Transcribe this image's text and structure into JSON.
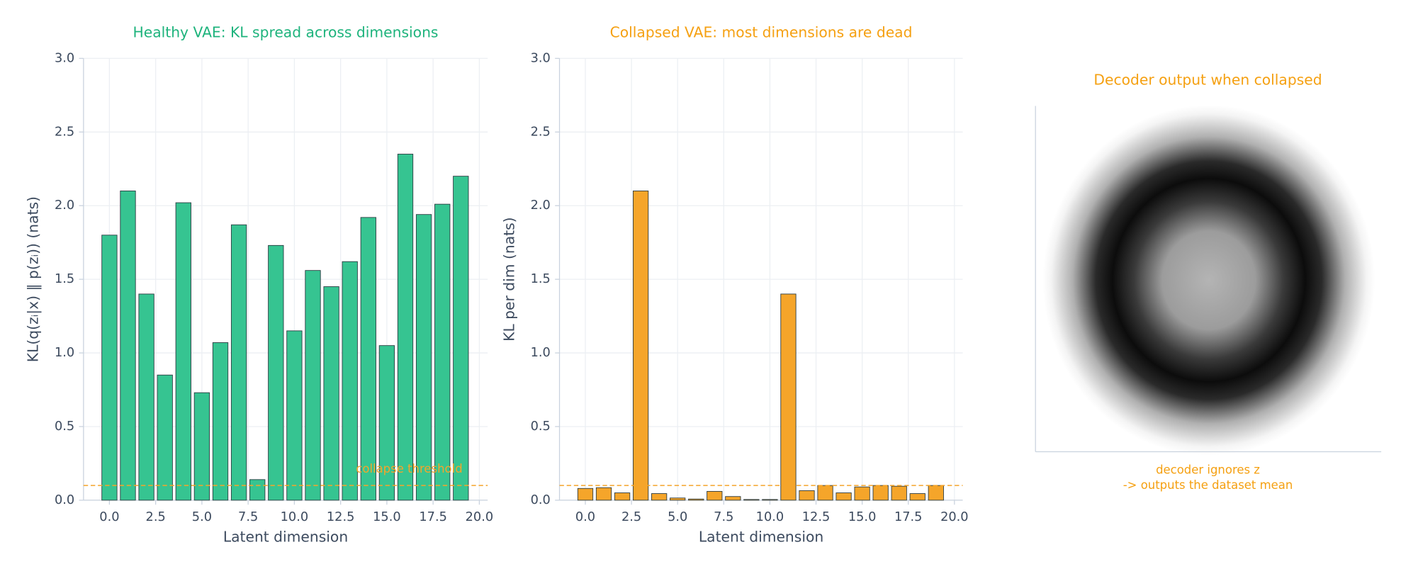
{
  "chart_data": [
    {
      "type": "bar",
      "title": "Healthy VAE: KL spread across dimensions",
      "title_color": "#1db37c",
      "x_label": "Latent dimension",
      "y_label": "KL(q(zᵢ|x) ‖ p(zᵢ)) (nats)",
      "x": [
        0,
        1,
        2,
        3,
        4,
        5,
        6,
        7,
        8,
        9,
        10,
        11,
        12,
        13,
        14,
        15,
        16,
        17,
        18,
        19
      ],
      "values": [
        1.8,
        2.1,
        1.4,
        0.85,
        2.02,
        0.73,
        1.07,
        1.87,
        0.14,
        1.73,
        1.15,
        1.56,
        1.45,
        1.62,
        1.92,
        1.05,
        2.35,
        1.94,
        2.01,
        2.2
      ],
      "color": "#36c491",
      "xlim": [
        -1.4,
        20.45
      ],
      "ylim": [
        0,
        3
      ],
      "xticks": [
        {
          "value": 0,
          "label": "0.0"
        },
        2.5,
        {
          "value": 5,
          "label": "5.0"
        },
        7.5,
        {
          "value": 10,
          "label": "10.0"
        },
        12.5,
        {
          "value": 15,
          "label": "15.0"
        },
        17.5,
        {
          "value": 20,
          "label": "20.0"
        }
      ],
      "yticks": [
        {
          "value": 0,
          "label": "0.0"
        },
        0.5,
        {
          "value": 1,
          "label": "1.0"
        },
        1.5,
        {
          "value": 2,
          "label": "2.0"
        },
        2.5,
        {
          "value": 3,
          "label": "3.0"
        }
      ],
      "grid": true,
      "threshold": 0.1,
      "threshold_label": "collapse threshold",
      "threshold_color": "#f5a52a"
    },
    {
      "type": "bar",
      "title": "Collapsed VAE: most dimensions are dead",
      "title_color": "#f5a011",
      "x_label": "Latent dimension",
      "y_label": "KL per dim (nats)",
      "x": [
        0,
        1,
        2,
        3,
        4,
        5,
        6,
        7,
        8,
        9,
        10,
        11,
        12,
        13,
        14,
        15,
        16,
        17,
        18,
        19
      ],
      "values": [
        0.08,
        0.085,
        0.05,
        2.1,
        0.045,
        0.015,
        0.008,
        0.06,
        0.025,
        0.005,
        0.005,
        1.4,
        0.065,
        0.1,
        0.05,
        0.09,
        0.1,
        0.095,
        0.045,
        0.1
      ],
      "color": "#f5a52a",
      "xlim": [
        -1.4,
        20.45
      ],
      "ylim": [
        0,
        3
      ],
      "xticks": [
        {
          "value": 0,
          "label": "0.0"
        },
        2.5,
        {
          "value": 5,
          "label": "5.0"
        },
        7.5,
        {
          "value": 10,
          "label": "10.0"
        },
        12.5,
        {
          "value": 15,
          "label": "15.0"
        },
        17.5,
        {
          "value": 20,
          "label": "20.0"
        }
      ],
      "yticks": [
        {
          "value": 0,
          "label": "0.0"
        },
        0.5,
        {
          "value": 1,
          "label": "1.0"
        },
        1.5,
        {
          "value": 2,
          "label": "2.0"
        },
        2.5,
        {
          "value": 3,
          "label": "3.0"
        }
      ],
      "grid": true,
      "threshold": 0.1,
      "threshold_color": "#f5a52a"
    }
  ],
  "image_panel": {
    "title": "Decoder output when collapsed",
    "caption": [
      "decoder ignores z",
      "-> outputs the dataset mean"
    ]
  }
}
